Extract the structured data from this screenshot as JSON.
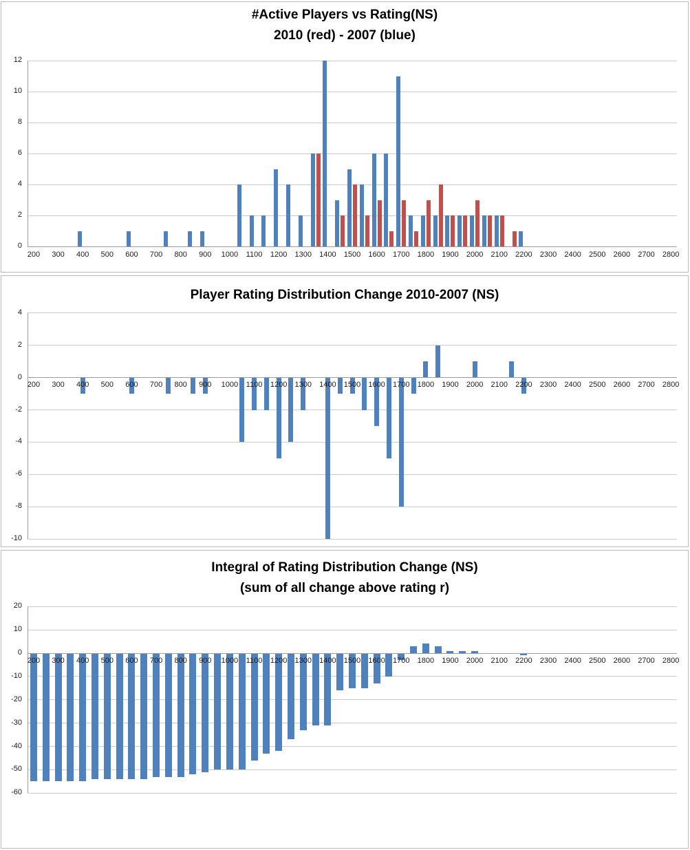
{
  "colors": {
    "series_blue": "#4f81bd",
    "series_red": "#c0504d",
    "gridline": "#cbcbcb",
    "axis_line": "#9a9a9a",
    "text": "#000000"
  },
  "chart_data": [
    {
      "type": "bar",
      "title": "#Active Players vs Rating(NS)",
      "subtitle": "2010 (red) - 2007 (blue)",
      "xlabel": "",
      "ylabel": "",
      "grid": true,
      "legend_position": "none",
      "x_axis": {
        "min": 200,
        "max": 2800,
        "category_step": 50,
        "label_interval": 100,
        "tick_labels": [
          "200",
          "300",
          "400",
          "500",
          "600",
          "700",
          "800",
          "900",
          "1000",
          "1100",
          "1200",
          "1300",
          "1400",
          "1500",
          "1600",
          "1700",
          "1800",
          "1900",
          "2000",
          "2100",
          "2200",
          "2300",
          "2400",
          "2500",
          "2600",
          "2700",
          "2800"
        ]
      },
      "y_axis": {
        "min": 0,
        "max": 12,
        "tick_step": 2,
        "ticks": [
          12,
          10,
          8,
          6,
          4,
          2,
          0
        ]
      },
      "series": [
        {
          "name": "2007",
          "color_key": "series_blue",
          "points": [
            [
              400,
              1
            ],
            [
              600,
              1
            ],
            [
              750,
              1
            ],
            [
              850,
              1
            ],
            [
              900,
              1
            ],
            [
              1050,
              4
            ],
            [
              1100,
              2
            ],
            [
              1150,
              2
            ],
            [
              1200,
              5
            ],
            [
              1250,
              4
            ],
            [
              1300,
              2
            ],
            [
              1350,
              6
            ],
            [
              1400,
              12
            ],
            [
              1450,
              3
            ],
            [
              1500,
              5
            ],
            [
              1550,
              4
            ],
            [
              1600,
              6
            ],
            [
              1650,
              6
            ],
            [
              1700,
              11
            ],
            [
              1750,
              2
            ],
            [
              1800,
              2
            ],
            [
              1850,
              2
            ],
            [
              1900,
              2
            ],
            [
              1950,
              2
            ],
            [
              2000,
              2
            ],
            [
              2050,
              2
            ],
            [
              2100,
              2
            ],
            [
              2200,
              1
            ]
          ]
        },
        {
          "name": "2010",
          "color_key": "series_red",
          "points": [
            [
              1350,
              6
            ],
            [
              1450,
              2
            ],
            [
              1500,
              4
            ],
            [
              1550,
              2
            ],
            [
              1600,
              3
            ],
            [
              1650,
              1
            ],
            [
              1700,
              3
            ],
            [
              1750,
              1
            ],
            [
              1800,
              3
            ],
            [
              1850,
              4
            ],
            [
              1900,
              2
            ],
            [
              1950,
              2
            ],
            [
              2000,
              3
            ],
            [
              2050,
              2
            ],
            [
              2100,
              2
            ],
            [
              2150,
              1
            ]
          ]
        }
      ]
    },
    {
      "type": "bar",
      "title": "Player Rating Distribution Change 2010-2007  (NS)",
      "subtitle": "",
      "xlabel": "",
      "ylabel": "",
      "grid": true,
      "legend_position": "none",
      "x_axis": {
        "min": 200,
        "max": 2800,
        "category_step": 50,
        "label_interval": 100,
        "tick_labels": [
          "200",
          "300",
          "400",
          "500",
          "600",
          "700",
          "800",
          "900",
          "1000",
          "1100",
          "1200",
          "1300",
          "1400",
          "1500",
          "1600",
          "1700",
          "1800",
          "1900",
          "2000",
          "2100",
          "2200",
          "2300",
          "2400",
          "2500",
          "2600",
          "2700",
          "2800"
        ]
      },
      "y_axis": {
        "min": -10,
        "max": 4,
        "tick_step": 2,
        "ticks": [
          4,
          2,
          0,
          -2,
          -4,
          -6,
          -8,
          -10
        ]
      },
      "series": [
        {
          "name": "2010 minus 2007",
          "color_key": "series_blue",
          "points": [
            [
              400,
              -1
            ],
            [
              600,
              -1
            ],
            [
              750,
              -1
            ],
            [
              850,
              -1
            ],
            [
              900,
              -1
            ],
            [
              1050,
              -4
            ],
            [
              1100,
              -2
            ],
            [
              1150,
              -2
            ],
            [
              1200,
              -5
            ],
            [
              1250,
              -4
            ],
            [
              1300,
              -2
            ],
            [
              1400,
              -10
            ],
            [
              1450,
              -1
            ],
            [
              1500,
              -1
            ],
            [
              1550,
              -2
            ],
            [
              1600,
              -3
            ],
            [
              1650,
              -5
            ],
            [
              1700,
              -8
            ],
            [
              1750,
              -1
            ],
            [
              1800,
              1
            ],
            [
              1850,
              2
            ],
            [
              2000,
              1
            ],
            [
              2150,
              1
            ],
            [
              2200,
              -1
            ]
          ]
        }
      ]
    },
    {
      "type": "bar",
      "title": "Integral of Rating Distribution Change (NS)",
      "subtitle": "(sum of all change above rating r)",
      "xlabel": "",
      "ylabel": "",
      "grid": true,
      "legend_position": "none",
      "x_axis": {
        "min": 200,
        "max": 2800,
        "category_step": 50,
        "label_interval": 100,
        "tick_labels": [
          "200",
          "300",
          "400",
          "500",
          "600",
          "700",
          "800",
          "900",
          "1000",
          "1100",
          "1200",
          "1300",
          "1400",
          "1500",
          "1600",
          "1700",
          "1800",
          "1900",
          "2000",
          "2100",
          "2200",
          "2300",
          "2400",
          "2500",
          "2600",
          "2700",
          "2800"
        ]
      },
      "y_axis": {
        "min": -60,
        "max": 20,
        "tick_step": 10,
        "ticks": [
          20,
          10,
          0,
          -10,
          -20,
          -30,
          -40,
          -50,
          -60
        ]
      },
      "series": [
        {
          "name": "sum of change above rating r",
          "color_key": "series_blue",
          "points": [
            [
              200,
              -55
            ],
            [
              250,
              -55
            ],
            [
              300,
              -55
            ],
            [
              350,
              -55
            ],
            [
              400,
              -55
            ],
            [
              450,
              -54
            ],
            [
              500,
              -54
            ],
            [
              550,
              -54
            ],
            [
              600,
              -54
            ],
            [
              650,
              -54
            ],
            [
              700,
              -53
            ],
            [
              750,
              -53
            ],
            [
              800,
              -53
            ],
            [
              850,
              -52
            ],
            [
              900,
              -51
            ],
            [
              950,
              -50
            ],
            [
              1000,
              -50
            ],
            [
              1050,
              -50
            ],
            [
              1100,
              -46
            ],
            [
              1150,
              -43
            ],
            [
              1200,
              -42
            ],
            [
              1250,
              -37
            ],
            [
              1300,
              -33
            ],
            [
              1350,
              -31
            ],
            [
              1400,
              -31
            ],
            [
              1450,
              -16
            ],
            [
              1500,
              -15
            ],
            [
              1550,
              -15
            ],
            [
              1600,
              -13
            ],
            [
              1650,
              -10
            ],
            [
              1700,
              -3
            ],
            [
              1750,
              3
            ],
            [
              1800,
              4
            ],
            [
              1850,
              3
            ],
            [
              1900,
              1
            ],
            [
              1950,
              1
            ],
            [
              2000,
              1
            ],
            [
              2200,
              -1
            ]
          ]
        }
      ]
    }
  ]
}
